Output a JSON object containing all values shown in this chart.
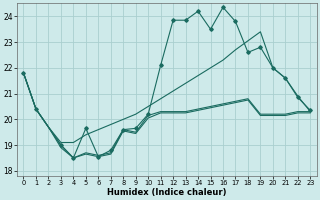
{
  "xlabel": "Humidex (Indice chaleur)",
  "background_color": "#ceeaea",
  "grid_color": "#aacfcf",
  "line_color": "#1a6b60",
  "xlim": [
    -0.5,
    23.5
  ],
  "ylim": [
    17.8,
    24.5
  ],
  "yticks": [
    18,
    19,
    20,
    21,
    22,
    23,
    24
  ],
  "xticks": [
    0,
    1,
    2,
    3,
    4,
    5,
    6,
    7,
    8,
    9,
    10,
    11,
    12,
    13,
    14,
    15,
    16,
    17,
    18,
    19,
    20,
    21,
    22,
    23
  ],
  "line1_x": [
    0,
    1,
    2,
    3,
    4,
    5,
    6,
    7,
    8,
    9,
    10,
    11,
    12,
    13,
    14,
    15,
    16,
    17,
    18,
    19,
    20,
    21,
    22,
    23
  ],
  "line1_y": [
    21.8,
    20.4,
    19.7,
    19.0,
    18.5,
    18.7,
    18.6,
    18.7,
    19.6,
    19.5,
    20.15,
    20.3,
    20.3,
    20.3,
    20.4,
    20.5,
    20.6,
    20.7,
    20.8,
    20.2,
    20.2,
    20.2,
    20.3,
    20.3
  ],
  "line2_x": [
    0,
    1,
    2,
    3,
    4,
    5,
    6,
    7,
    8,
    9,
    10,
    11,
    12,
    13,
    14,
    15,
    16,
    17,
    18,
    19,
    20,
    21,
    22,
    23
  ],
  "line2_y": [
    21.8,
    20.4,
    19.7,
    19.1,
    19.1,
    19.4,
    19.6,
    19.8,
    20.0,
    20.2,
    20.5,
    20.8,
    21.1,
    21.4,
    21.7,
    22.0,
    22.3,
    22.7,
    23.05,
    23.4,
    22.0,
    21.6,
    20.9,
    20.3
  ],
  "line3_x": [
    0,
    1,
    2,
    3,
    4,
    5,
    6,
    7,
    8,
    9,
    10,
    11,
    12,
    13,
    14,
    15,
    16,
    17,
    18,
    19,
    20,
    21,
    22,
    23
  ],
  "line3_y": [
    21.8,
    20.4,
    19.7,
    18.9,
    18.5,
    18.65,
    18.55,
    18.65,
    19.55,
    19.45,
    20.05,
    20.25,
    20.25,
    20.25,
    20.35,
    20.45,
    20.55,
    20.65,
    20.75,
    20.15,
    20.15,
    20.15,
    20.25,
    20.25
  ],
  "line4_x": [
    0,
    1,
    3,
    4,
    5,
    6,
    7,
    8,
    9,
    10,
    11,
    12,
    13,
    14,
    15,
    16,
    17,
    18,
    19,
    20,
    21,
    22,
    23
  ],
  "line4_y": [
    21.8,
    20.4,
    19.0,
    18.5,
    19.65,
    18.55,
    18.8,
    19.6,
    19.65,
    20.2,
    22.1,
    23.85,
    23.85,
    24.2,
    23.5,
    24.35,
    23.8,
    22.6,
    22.8,
    22.0,
    21.6,
    20.85,
    20.35
  ]
}
